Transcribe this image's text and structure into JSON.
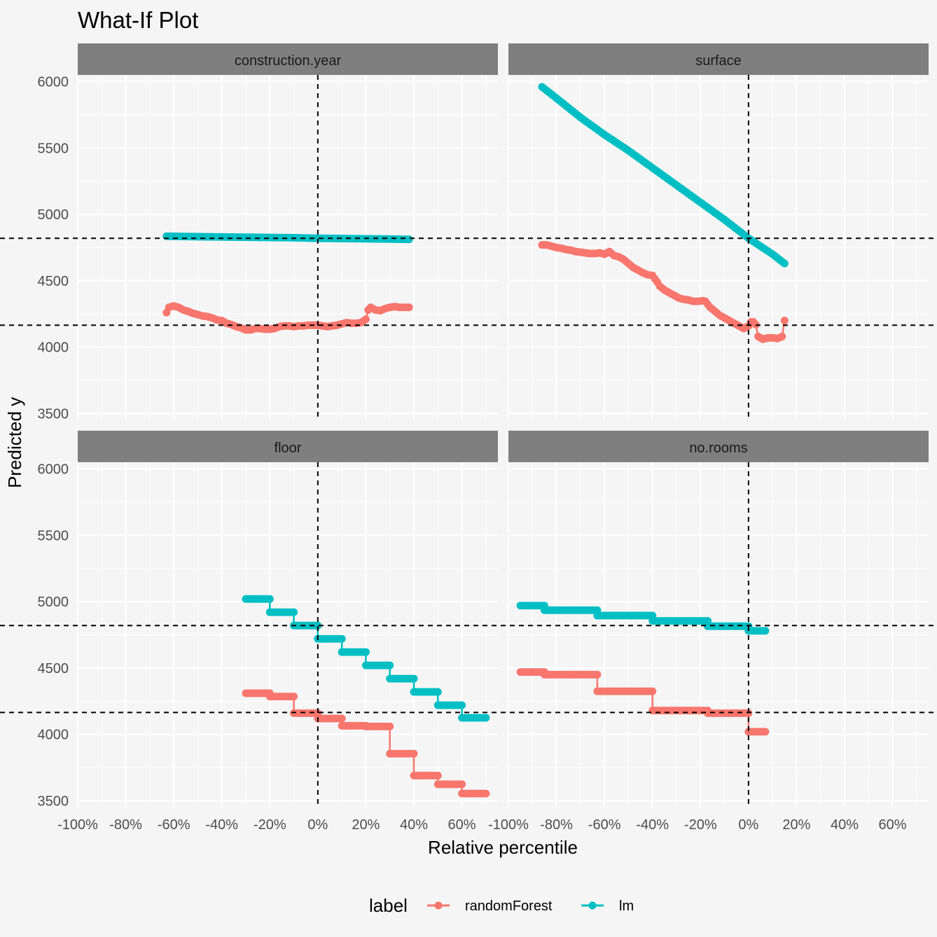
{
  "chart_data": {
    "type": "line",
    "title": "What-If Plot",
    "xlabel": "Relative percentile",
    "ylabel": "Predicted y",
    "xlim": [
      -100,
      75
    ],
    "ylim": [
      3450,
      6050
    ],
    "x_ticks": [
      -100,
      -80,
      -60,
      -40,
      -20,
      0,
      20,
      40,
      60
    ],
    "x_tick_labels": [
      "-100%",
      "-80%",
      "-60%",
      "-40%",
      "-20%",
      "0%",
      "20%",
      "40%",
      "60%"
    ],
    "y_ticks": [
      3500,
      4000,
      4500,
      5000,
      5500,
      6000
    ],
    "y_tick_labels": [
      "3500",
      "4000",
      "4500",
      "5000",
      "5500",
      "6000"
    ],
    "reference_lines": {
      "vertical_x": 0,
      "horizontal_y": [
        4820,
        4165
      ]
    },
    "legend": {
      "title": "label",
      "entries": [
        {
          "name": "randomForest",
          "color": "#F8766D"
        },
        {
          "name": "lm",
          "color": "#00BFC4"
        }
      ]
    },
    "panels": [
      {
        "name": "construction.year",
        "series": [
          {
            "name": "randomForest",
            "color": "#F8766D",
            "points": [
              [
                -63,
                4260
              ],
              [
                -62,
                4300
              ],
              [
                -60,
                4310
              ],
              [
                -58,
                4300
              ],
              [
                -56,
                4280
              ],
              [
                -54,
                4270
              ],
              [
                -52,
                4255
              ],
              [
                -50,
                4245
              ],
              [
                -48,
                4235
              ],
              [
                -46,
                4230
              ],
              [
                -44,
                4220
              ],
              [
                -42,
                4205
              ],
              [
                -40,
                4200
              ],
              [
                -38,
                4180
              ],
              [
                -36,
                4170
              ],
              [
                -34,
                4155
              ],
              [
                -32,
                4145
              ],
              [
                -30,
                4130
              ],
              [
                -28,
                4130
              ],
              [
                -26,
                4140
              ],
              [
                -24,
                4140
              ],
              [
                -22,
                4135
              ],
              [
                -20,
                4135
              ],
              [
                -18,
                4140
              ],
              [
                -16,
                4155
              ],
              [
                -14,
                4160
              ],
              [
                -12,
                4160
              ],
              [
                -10,
                4155
              ],
              [
                -8,
                4160
              ],
              [
                -6,
                4160
              ],
              [
                -4,
                4165
              ],
              [
                -2,
                4165
              ],
              [
                0,
                4165
              ],
              [
                2,
                4160
              ],
              [
                4,
                4155
              ],
              [
                6,
                4160
              ],
              [
                8,
                4165
              ],
              [
                10,
                4175
              ],
              [
                12,
                4185
              ],
              [
                14,
                4180
              ],
              [
                16,
                4180
              ],
              [
                18,
                4185
              ],
              [
                20,
                4210
              ],
              [
                21,
                4280
              ],
              [
                22,
                4300
              ],
              [
                24,
                4280
              ],
              [
                26,
                4275
              ],
              [
                28,
                4290
              ],
              [
                30,
                4300
              ],
              [
                32,
                4305
              ],
              [
                34,
                4300
              ],
              [
                36,
                4300
              ],
              [
                38,
                4300
              ]
            ]
          },
          {
            "name": "lm",
            "color": "#00BFC4",
            "points": [
              [
                -63,
                4835
              ],
              [
                -50,
                4832
              ],
              [
                -40,
                4830
              ],
              [
                -30,
                4828
              ],
              [
                -20,
                4826
              ],
              [
                -10,
                4824
              ],
              [
                0,
                4820
              ],
              [
                10,
                4818
              ],
              [
                20,
                4816
              ],
              [
                30,
                4814
              ],
              [
                38,
                4812
              ]
            ]
          }
        ]
      },
      {
        "name": "surface",
        "series": [
          {
            "name": "randomForest",
            "color": "#F8766D",
            "points": [
              [
                -86,
                4770
              ],
              [
                -84,
                4770
              ],
              [
                -82,
                4760
              ],
              [
                -80,
                4750
              ],
              [
                -78,
                4745
              ],
              [
                -76,
                4735
              ],
              [
                -74,
                4730
              ],
              [
                -72,
                4720
              ],
              [
                -70,
                4715
              ],
              [
                -68,
                4710
              ],
              [
                -66,
                4705
              ],
              [
                -64,
                4705
              ],
              [
                -62,
                4710
              ],
              [
                -60,
                4700
              ],
              [
                -58,
                4720
              ],
              [
                -56,
                4690
              ],
              [
                -54,
                4680
              ],
              [
                -52,
                4660
              ],
              [
                -50,
                4630
              ],
              [
                -48,
                4600
              ],
              [
                -46,
                4580
              ],
              [
                -44,
                4560
              ],
              [
                -42,
                4545
              ],
              [
                -40,
                4540
              ],
              [
                -38,
                4490
              ],
              [
                -37,
                4460
              ],
              [
                -35,
                4430
              ],
              [
                -33,
                4410
              ],
              [
                -31,
                4390
              ],
              [
                -29,
                4370
              ],
              [
                -27,
                4360
              ],
              [
                -25,
                4355
              ],
              [
                -23,
                4345
              ],
              [
                -21,
                4345
              ],
              [
                -19,
                4350
              ],
              [
                -18,
                4345
              ],
              [
                -16,
                4300
              ],
              [
                -14,
                4270
              ],
              [
                -12,
                4240
              ],
              [
                -10,
                4220
              ],
              [
                -8,
                4200
              ],
              [
                -6,
                4180
              ],
              [
                -4,
                4160
              ],
              [
                -2,
                4140
              ],
              [
                0,
                4160
              ],
              [
                1,
                4190
              ],
              [
                2,
                4190
              ],
              [
                3,
                4170
              ],
              [
                4,
                4080
              ],
              [
                6,
                4060
              ],
              [
                8,
                4070
              ],
              [
                10,
                4070
              ],
              [
                12,
                4065
              ],
              [
                14,
                4080
              ],
              [
                15,
                4200
              ]
            ]
          },
          {
            "name": "lm",
            "color": "#00BFC4",
            "points": [
              [
                -86,
                5960
              ],
              [
                -80,
                5875
              ],
              [
                -70,
                5730
              ],
              [
                -60,
                5600
              ],
              [
                -50,
                5480
              ],
              [
                -40,
                5350
              ],
              [
                -30,
                5220
              ],
              [
                -20,
                5090
              ],
              [
                -10,
                4960
              ],
              [
                0,
                4820
              ],
              [
                10,
                4700
              ],
              [
                15,
                4630
              ]
            ]
          }
        ]
      },
      {
        "name": "floor",
        "series": [
          {
            "name": "randomForest",
            "color": "#F8766D",
            "points": [
              [
                -30,
                4310
              ],
              [
                -20,
                4310
              ],
              [
                -20,
                4285
              ],
              [
                -10,
                4285
              ],
              [
                -10,
                4160
              ],
              [
                0,
                4160
              ],
              [
                0,
                4120
              ],
              [
                10,
                4120
              ],
              [
                10,
                4065
              ],
              [
                20,
                4065
              ],
              [
                20,
                4060
              ],
              [
                30,
                4060
              ],
              [
                30,
                3855
              ],
              [
                40,
                3855
              ],
              [
                40,
                3690
              ],
              [
                50,
                3690
              ],
              [
                50,
                3625
              ],
              [
                60,
                3625
              ],
              [
                60,
                3555
              ],
              [
                70,
                3555
              ]
            ]
          },
          {
            "name": "lm",
            "color": "#00BFC4",
            "points": [
              [
                -30,
                5020
              ],
              [
                -20,
                5020
              ],
              [
                -20,
                4920
              ],
              [
                -10,
                4920
              ],
              [
                -10,
                4820
              ],
              [
                0,
                4820
              ],
              [
                0,
                4720
              ],
              [
                10,
                4720
              ],
              [
                10,
                4620
              ],
              [
                20,
                4620
              ],
              [
                20,
                4520
              ],
              [
                30,
                4520
              ],
              [
                30,
                4420
              ],
              [
                40,
                4420
              ],
              [
                40,
                4320
              ],
              [
                50,
                4320
              ],
              [
                50,
                4220
              ],
              [
                60,
                4220
              ],
              [
                60,
                4125
              ],
              [
                70,
                4125
              ]
            ]
          }
        ]
      },
      {
        "name": "no.rooms",
        "series": [
          {
            "name": "randomForest",
            "color": "#F8766D",
            "points": [
              [
                -95,
                4470
              ],
              [
                -85,
                4470
              ],
              [
                -85,
                4450
              ],
              [
                -63,
                4450
              ],
              [
                -63,
                4325
              ],
              [
                -40,
                4325
              ],
              [
                -40,
                4180
              ],
              [
                -17,
                4180
              ],
              [
                -17,
                4160
              ],
              [
                0,
                4160
              ],
              [
                0,
                4020
              ],
              [
                7,
                4020
              ]
            ]
          },
          {
            "name": "lm",
            "color": "#00BFC4",
            "points": [
              [
                -95,
                4970
              ],
              [
                -85,
                4970
              ],
              [
                -85,
                4935
              ],
              [
                -63,
                4935
              ],
              [
                -63,
                4895
              ],
              [
                -40,
                4895
              ],
              [
                -40,
                4855
              ],
              [
                -17,
                4855
              ],
              [
                -17,
                4815
              ],
              [
                0,
                4815
              ],
              [
                0,
                4780
              ],
              [
                7,
                4780
              ]
            ]
          }
        ]
      }
    ]
  }
}
